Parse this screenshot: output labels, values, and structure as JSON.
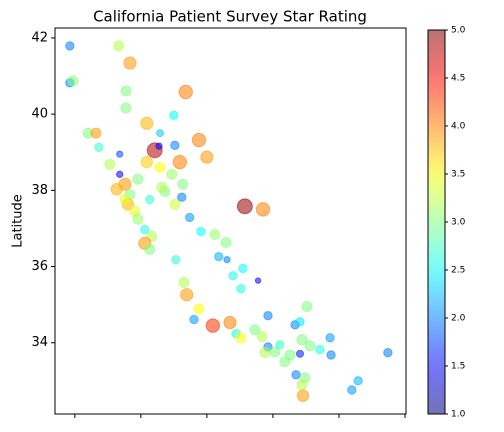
{
  "chart_data": {
    "type": "scatter",
    "title": "California Patient Survey Star Rating",
    "ylabel": "Latitude",
    "x": [
      -124.15,
      -124.15,
      -124.06,
      -122.67,
      -122.33,
      -122.45,
      -122.45,
      -123.6,
      -123.36,
      -123.27,
      -121.82,
      -121.42,
      -121.0,
      -120.64,
      -120.24,
      -120.0,
      -121.58,
      -121.45,
      -120.97,
      -120.82,
      -121.82,
      -121.42,
      -122.64,
      -122.94,
      -122.64,
      -122.48,
      -122.33,
      -122.39,
      -122.18,
      -122.09,
      -121.88,
      -121.67,
      -121.88,
      -121.73,
      -121.27,
      -120.97,
      -120.73,
      -120.52,
      -120.76,
      -118.85,
      -118.3,
      -120.18,
      -119.76,
      -119.42,
      -119.39,
      -119.64,
      -118.91,
      -119.21,
      -118.97,
      -118.45,
      -120.7,
      -120.61,
      -120.94,
      -120.39,
      -120.24,
      -119.82,
      -119.3,
      -119.12,
      -118.15,
      -118.55,
      -118.33,
      -118.15,
      -117.94,
      -117.79,
      -117.48,
      -117.33,
      -117.18,
      -116.97,
      -117.12,
      -117.18,
      -116.88,
      -116.58,
      -116.27,
      -116.24,
      -117.3,
      -117.03,
      -117.12,
      -117.09,
      -115.61,
      -115.42,
      -114.52,
      -118.97,
      -117.64,
      -118.24,
      -122.73,
      -122.48,
      -122.09,
      -121.73,
      -121.06,
      -121.36
    ],
    "values": [
      41.79,
      40.82,
      40.87,
      41.79,
      41.34,
      40.61,
      40.16,
      39.5,
      39.5,
      39.13,
      39.76,
      39.5,
      39.97,
      40.58,
      39.32,
      38.87,
      39.05,
      39.16,
      39.18,
      38.74,
      38.74,
      38.6,
      38.95,
      38.68,
      38.42,
      38.16,
      37.89,
      37.63,
      37.45,
      37.24,
      36.97,
      36.79,
      36.61,
      36.45,
      37.97,
      37.63,
      38.16,
      37.29,
      37.82,
      37.58,
      37.5,
      36.92,
      36.84,
      36.63,
      36.18,
      36.26,
      35.95,
      35.76,
      35.42,
      35.63,
      35.58,
      35.26,
      36.18,
      34.61,
      34.89,
      34.45,
      34.53,
      34.24,
      34.71,
      34.34,
      34.16,
      33.89,
      33.76,
      33.95,
      33.68,
      34.47,
      34.55,
      34.95,
      34.08,
      33.71,
      33.92,
      33.82,
      34.13,
      33.68,
      33.16,
      33.08,
      32.89,
      32.61,
      32.76,
      33.0,
      33.74,
      34.13,
      33.5,
      33.74,
      38.03,
      37.76,
      38.29,
      37.76,
      38.42,
      38.08
    ],
    "color_values": [
      2.0,
      2.0,
      3.0,
      3.2,
      3.9,
      3.0,
      3.0,
      3.0,
      3.9,
      2.7,
      3.8,
      2.3,
      2.5,
      4.0,
      4.0,
      3.9,
      4.8,
      1.5,
      2.0,
      4.0,
      3.7,
      3.5,
      1.8,
      3.2,
      1.5,
      3.9,
      3.0,
      3.8,
      3.4,
      3.1,
      2.6,
      3.2,
      3.9,
      3.0,
      3.0,
      3.3,
      3.0,
      2.1,
      2.0,
      4.9,
      4.0,
      2.5,
      3.1,
      3.0,
      2.0,
      2.2,
      2.5,
      2.6,
      2.6,
      1.5,
      3.2,
      3.9,
      2.7,
      2.1,
      3.5,
      4.3,
      4.0,
      2.6,
      2.0,
      3.0,
      3.2,
      2.0,
      3.0,
      2.7,
      3.0,
      2.0,
      2.4,
      3.0,
      3.0,
      1.6,
      3.0,
      2.6,
      2.1,
      2.0,
      2.0,
      3.0,
      3.2,
      3.9,
      2.1,
      2.2,
      2.0,
      3.5,
      3.0,
      3.2,
      3.8,
      3.4,
      3.0,
      2.7,
      3.1,
      3.2
    ],
    "sizes": [
      70,
      70,
      100,
      100,
      150,
      100,
      100,
      100,
      100,
      70,
      150,
      50,
      70,
      180,
      180,
      150,
      220,
      40,
      70,
      180,
      130,
      100,
      40,
      100,
      40,
      150,
      100,
      130,
      100,
      100,
      70,
      100,
      150,
      100,
      100,
      100,
      100,
      70,
      70,
      220,
      180,
      70,
      100,
      100,
      40,
      70,
      70,
      70,
      70,
      30,
      100,
      150,
      70,
      70,
      100,
      180,
      150,
      70,
      70,
      100,
      100,
      70,
      100,
      70,
      100,
      70,
      70,
      100,
      100,
      50,
      100,
      70,
      70,
      70,
      70,
      100,
      100,
      130,
      70,
      70,
      70,
      100,
      100,
      100,
      130,
      100,
      100,
      70,
      100,
      100
    ],
    "ylim": [
      32.13,
      42.26
    ],
    "yticks": [
      34,
      36,
      38,
      40,
      42
    ],
    "xlim": [
      -124.6,
      -113.97
    ],
    "xticks": [
      -124,
      -122,
      -120,
      -118,
      -116,
      -114
    ],
    "colormap": "jet",
    "alpha": 0.55,
    "clim": [
      1.0,
      5.0
    ],
    "cticks": [
      {
        "value": 1.0,
        "label": "1.0"
      },
      {
        "value": 1.5,
        "label": "1.5"
      },
      {
        "value": 2.0,
        "label": "2.0"
      },
      {
        "value": 2.5,
        "label": "2.5"
      },
      {
        "value": 3.0,
        "label": "3.0"
      },
      {
        "value": 3.5,
        "label": "3.5"
      },
      {
        "value": 4.0,
        "label": "4.0"
      },
      {
        "value": 4.5,
        "label": "4.5"
      },
      {
        "value": 5.0,
        "label": "5.0"
      }
    ]
  }
}
